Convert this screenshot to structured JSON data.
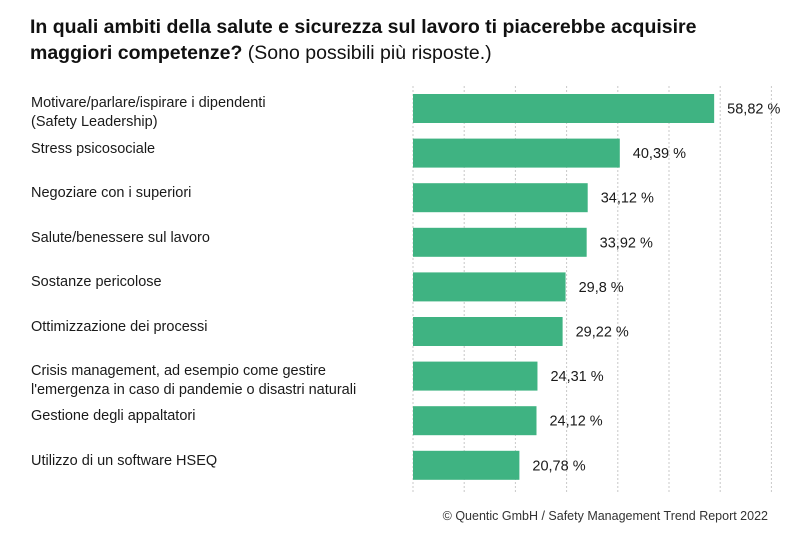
{
  "title": {
    "bold": "In quali ambiti della salute e sicurezza sul lavoro ti piacerebbe acquisire maggiori competenze?",
    "normal": "(Sono possibili più risposte.)"
  },
  "chart_data": {
    "type": "bar",
    "orientation": "horizontal",
    "categories": [
      "Motivare/parlare/ispirare i dipendenti\n(Safety Leadership)",
      "Stress psicosociale",
      "Negoziare con i superiori",
      "Salute/benessere sul lavoro",
      "Sostanze pericolose",
      "Ottimizzazione dei processi",
      "Crisis management, ad esempio come gestire\nl'emergenza in caso di pandemie o disastri naturali",
      "Gestione degli appaltatori",
      "Utilizzo di un software HSEQ"
    ],
    "values": [
      58.82,
      40.39,
      34.12,
      33.92,
      29.8,
      29.22,
      24.31,
      24.12,
      20.78
    ],
    "value_labels": [
      "58,82 %",
      "40,39 %",
      "34,12 %",
      "33,92 %",
      "29,8 %",
      "29,22 %",
      "24,31 %",
      "24,12 %",
      "20,78 %"
    ],
    "xlim": [
      0,
      70
    ],
    "grid": true,
    "color": "#3fb382"
  },
  "footer": "© Quentic GmbH / Safety Management Trend Report 2022"
}
